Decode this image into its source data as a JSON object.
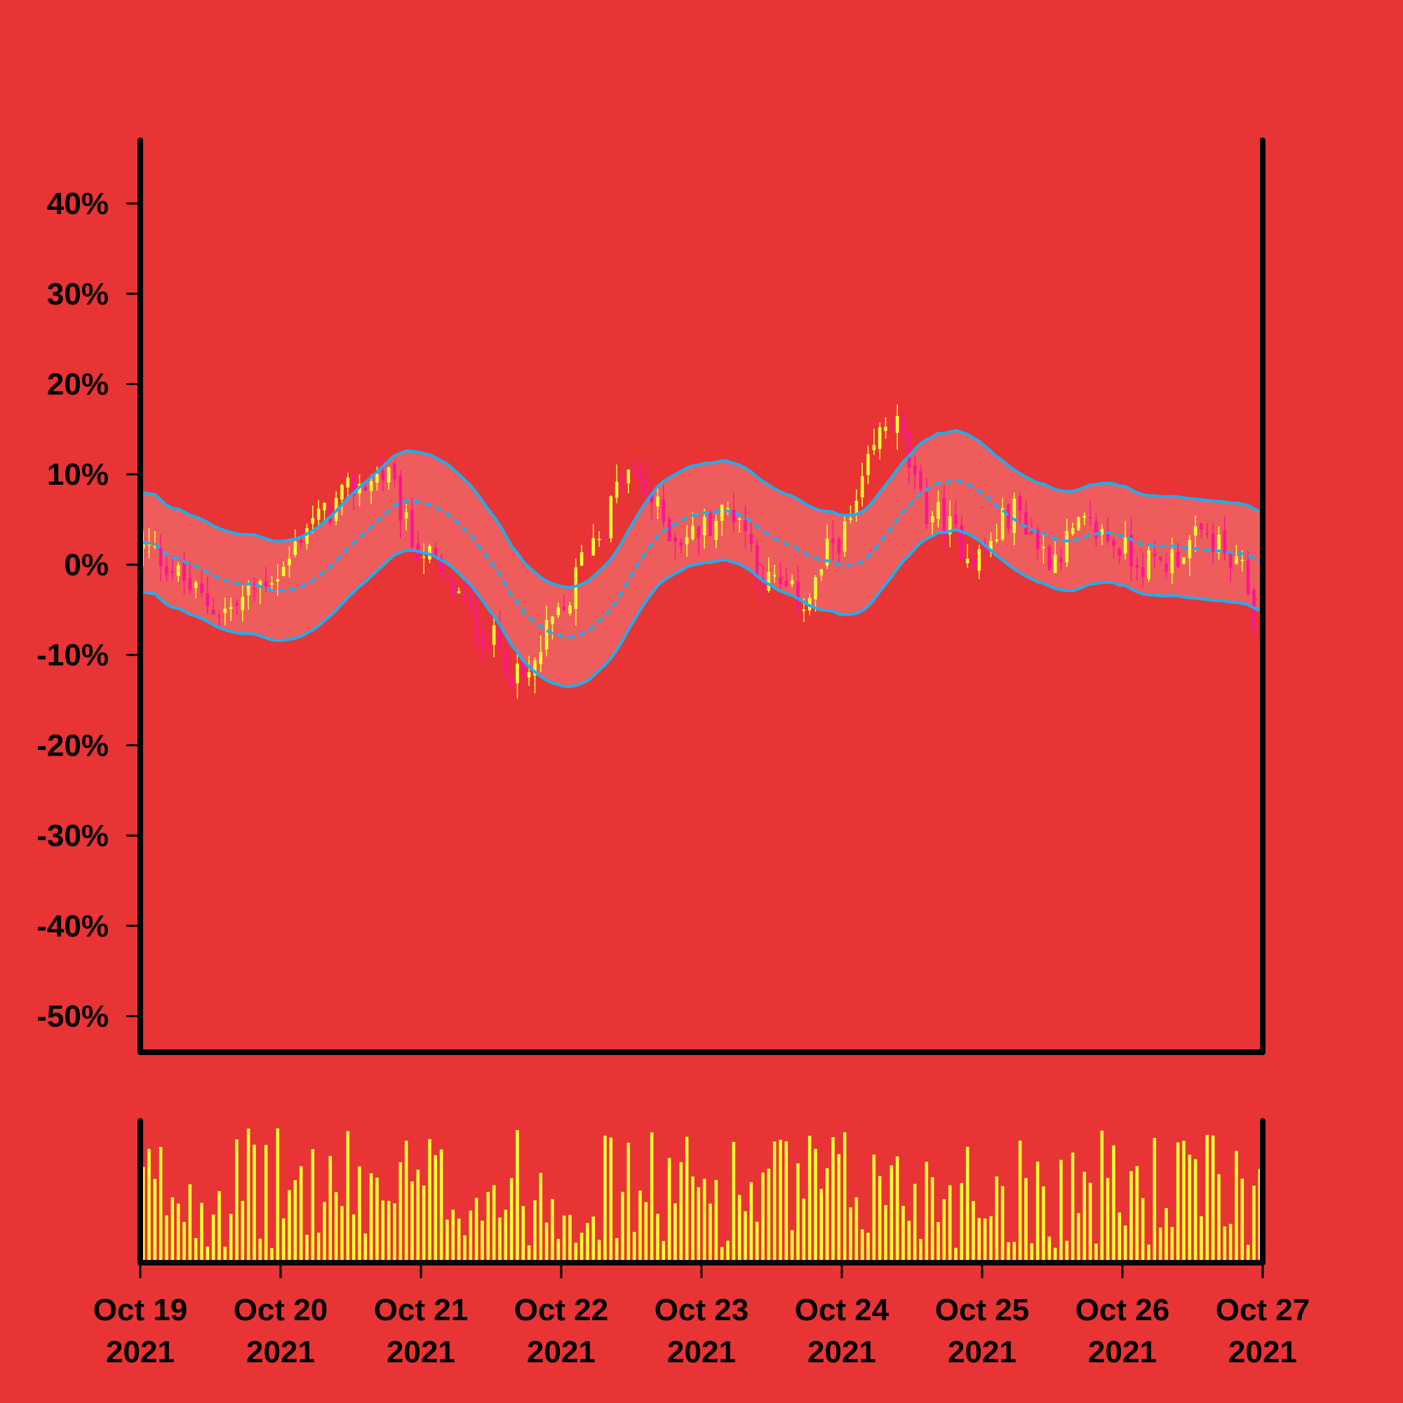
{
  "chart_data": {
    "type": "candlestick",
    "title": "",
    "xlabel": "",
    "ylabel": "",
    "y_axis": {
      "range": [
        -0.54,
        0.47
      ],
      "ticks": [
        {
          "value": 0.4,
          "label": "40%"
        },
        {
          "value": 0.3,
          "label": "30%"
        },
        {
          "value": 0.2,
          "label": "20%"
        },
        {
          "value": 0.1,
          "label": "10%"
        },
        {
          "value": 0.0,
          "label": "0%"
        },
        {
          "value": -0.1,
          "label": "-10%"
        },
        {
          "value": -0.2,
          "label": "-20%"
        },
        {
          "value": -0.3,
          "label": "-30%"
        },
        {
          "value": -0.4,
          "label": "-40%"
        },
        {
          "value": -0.5,
          "label": "-50%"
        }
      ]
    },
    "x_axis": {
      "range": [
        "2021-10-19",
        "2021-10-27"
      ],
      "ticks": [
        {
          "value": "2021-10-19",
          "label": [
            "Oct 19",
            "2021"
          ]
        },
        {
          "value": "2021-10-20",
          "label": [
            "Oct 20",
            "2021"
          ]
        },
        {
          "value": "2021-10-21",
          "label": [
            "Oct 21",
            "2021"
          ]
        },
        {
          "value": "2021-10-22",
          "label": [
            "Oct 22",
            "2021"
          ]
        },
        {
          "value": "2021-10-23",
          "label": [
            "Oct 23",
            "2021"
          ]
        },
        {
          "value": "2021-10-24",
          "label": [
            "Oct 24",
            "2021"
          ]
        },
        {
          "value": "2021-10-25",
          "label": [
            "Oct 25",
            "2021"
          ]
        },
        {
          "value": "2021-10-26",
          "label": [
            "Oct 26",
            "2021"
          ]
        },
        {
          "value": "2021-10-27",
          "label": [
            "Oct 27",
            "2021"
          ]
        }
      ]
    },
    "price_anchors": [
      [
        "2021-10-19T00:00",
        0.02
      ],
      [
        "2021-10-19T15:00",
        -0.05
      ],
      [
        "2021-10-20T00:00",
        -0.01
      ],
      [
        "2021-10-20T06:00",
        0.05
      ],
      [
        "2021-10-20T15:00",
        0.09
      ],
      [
        "2021-10-20T18:00",
        0.1
      ],
      [
        "2021-10-21T00:00",
        0.02
      ],
      [
        "2021-10-21T06:00",
        -0.03
      ],
      [
        "2021-10-21T12:00",
        -0.08
      ],
      [
        "2021-10-21T18:00",
        -0.13
      ],
      [
        "2021-10-22T00:00",
        -0.06
      ],
      [
        "2021-10-22T06:00",
        0.03
      ],
      [
        "2021-10-22T12:00",
        0.1
      ],
      [
        "2021-10-22T21:00",
        0.03
      ],
      [
        "2021-10-23T06:00",
        0.06
      ],
      [
        "2021-10-23T12:00",
        -0.02
      ],
      [
        "2021-10-23T18:00",
        -0.04
      ],
      [
        "2021-10-24T00:00",
        0.03
      ],
      [
        "2021-10-24T09:00",
        0.16
      ],
      [
        "2021-10-24T15:00",
        0.06
      ],
      [
        "2021-10-25T00:00",
        0.01
      ],
      [
        "2021-10-25T06:00",
        0.06
      ],
      [
        "2021-10-25T12:00",
        0.01
      ],
      [
        "2021-10-25T18:00",
        0.04
      ],
      [
        "2021-10-26T06:00",
        0.0
      ],
      [
        "2021-10-26T15:00",
        0.03
      ],
      [
        "2021-10-26T21:00",
        -0.01
      ],
      [
        "2021-10-27T00:00",
        -0.08
      ]
    ],
    "candle_interval_hours": 1,
    "overlays": {
      "band_width": 0.055,
      "middle_style": "dashed"
    },
    "volume_panel": true,
    "grid": false,
    "legend": "none"
  },
  "colors": {
    "background": "#e83434",
    "axis": "#000000",
    "candle_up": "#ffff33",
    "candle_down": "#ff1493",
    "band_line": "#1ab0f0",
    "band_fill": "#f06060",
    "volume_bar": "#ffff33"
  }
}
